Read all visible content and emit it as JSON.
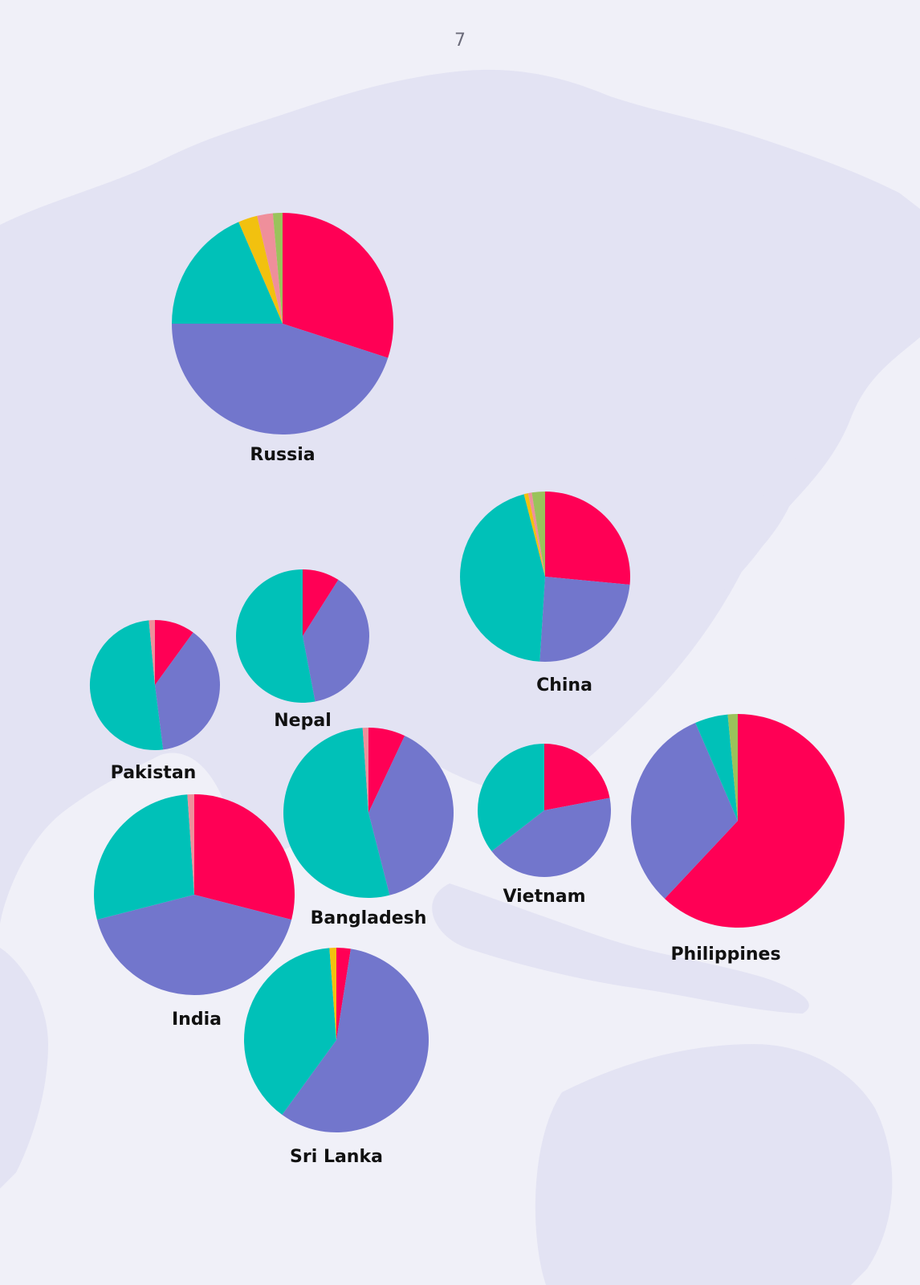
{
  "page": {
    "number": "7"
  },
  "colors": {
    "background": "#f0f0f8",
    "map_land": "#e3e3f3",
    "series": [
      "#ff0055",
      "#7276cc",
      "#00c1b8",
      "#f2c10f",
      "#ef8f9b",
      "#9ac35b"
    ]
  },
  "chart_data": {
    "type": "pie",
    "title": "",
    "note": "pies placed over a map of Asia; slice order clockwise from 12 o'clock; values are estimated shares (%)",
    "charts": [
      {
        "country": "Russia",
        "values": [
          30.0,
          45.0,
          18.5,
          2.8,
          2.3,
          1.4
        ]
      },
      {
        "country": "China",
        "values": [
          26.5,
          24.5,
          45.0,
          0.8,
          0.7,
          2.5
        ]
      },
      {
        "country": "Nepal",
        "values": [
          9.0,
          38.0,
          53.0,
          0,
          0,
          0
        ]
      },
      {
        "country": "Pakistan",
        "values": [
          10.0,
          38.0,
          50.5,
          0,
          1.5,
          0
        ]
      },
      {
        "country": "Bangladesh",
        "values": [
          7.0,
          39.0,
          52.9,
          0,
          1.1,
          0
        ]
      },
      {
        "country": "Vietnam",
        "values": [
          22.0,
          42.5,
          35.5,
          0,
          0,
          0
        ]
      },
      {
        "country": "Philippines",
        "values": [
          62.0,
          31.5,
          5.0,
          0,
          0,
          1.5
        ]
      },
      {
        "country": "India",
        "values": [
          29.0,
          42.0,
          27.9,
          0,
          1.1,
          0
        ]
      },
      {
        "country": "Sri Lanka",
        "values": [
          2.5,
          57.5,
          38.8,
          1.2,
          0,
          0
        ]
      }
    ]
  }
}
